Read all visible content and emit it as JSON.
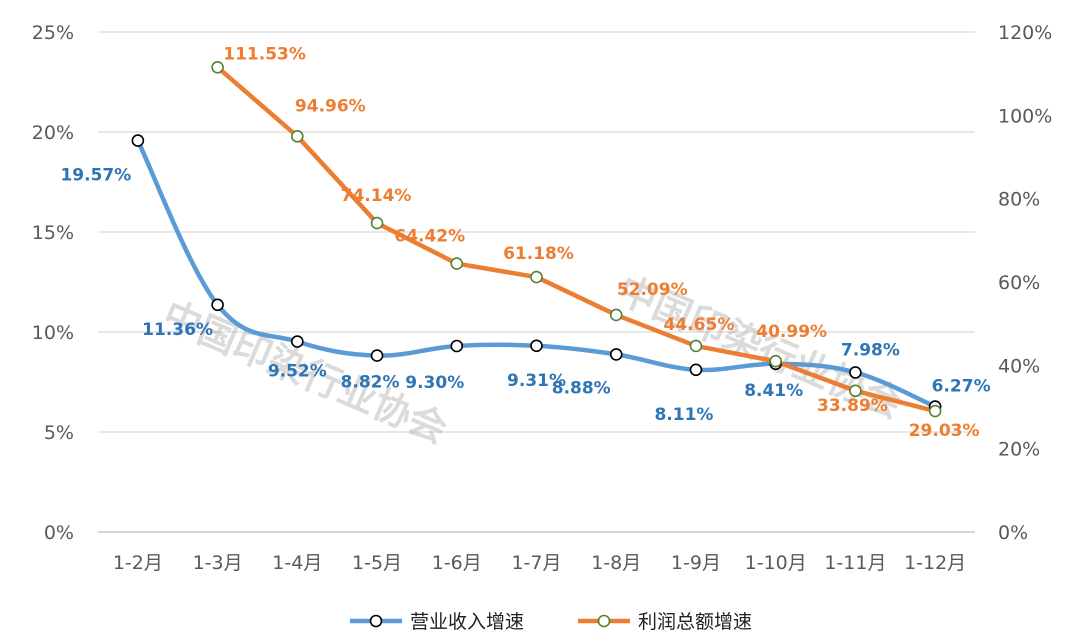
{
  "chart_data": {
    "type": "line",
    "categories": [
      "1-2月",
      "1-3月",
      "1-4月",
      "1-5月",
      "1-6月",
      "1-7月",
      "1-8月",
      "1-9月",
      "1-10月",
      "1-11月",
      "1-12月"
    ],
    "y_left": {
      "ticks": [
        "0%",
        "5%",
        "10%",
        "15%",
        "20%",
        "25%"
      ],
      "range": [
        0,
        25
      ]
    },
    "y_right": {
      "ticks": [
        "0%",
        "20%",
        "40%",
        "60%",
        "80%",
        "100%",
        "120%"
      ],
      "range": [
        0,
        120
      ]
    },
    "grid": true,
    "legend_position": "bottom",
    "series": [
      {
        "name": "营业收入增速",
        "axis": "left",
        "color": "#5B9BD5",
        "values": [
          19.57,
          11.36,
          9.52,
          8.82,
          9.3,
          9.31,
          8.88,
          8.11,
          8.41,
          7.98,
          6.27
        ],
        "labels": [
          "19.57%",
          "11.36%",
          "9.52%",
          "8.82%",
          "9.30%",
          "9.31%",
          "8.88%",
          "8.11%",
          "8.41%",
          "7.98%",
          "6.27%"
        ],
        "label_color": "#2E75B6"
      },
      {
        "name": "利润总额增速",
        "axis": "right",
        "color": "#ED7D31",
        "values": [
          null,
          111.53,
          94.96,
          74.14,
          64.42,
          61.18,
          52.09,
          44.65,
          40.99,
          33.89,
          29.03
        ],
        "labels": [
          null,
          "111.53%",
          "94.96%",
          "74.14%",
          "64.42%",
          "61.18%",
          "52.09%",
          "44.65%",
          "40.99%",
          "33.89%",
          "29.03%"
        ],
        "label_color": "#ED7D31"
      }
    ],
    "watermark": "中国印染行业协会"
  }
}
